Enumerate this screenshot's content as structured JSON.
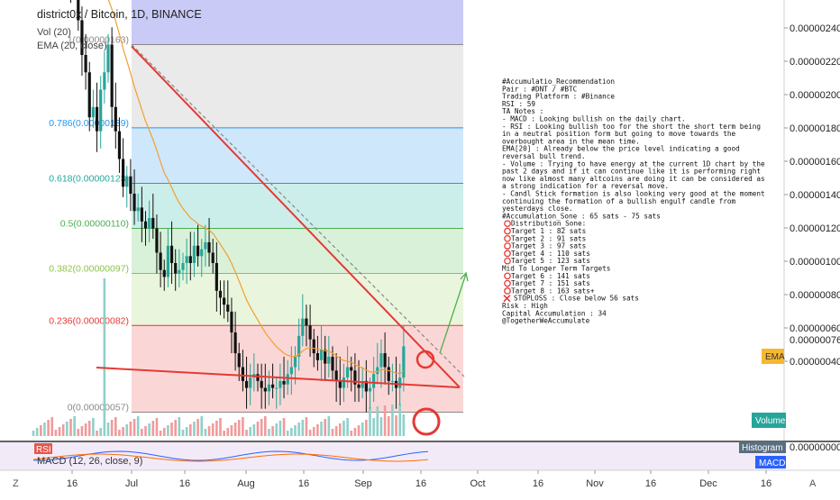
{
  "header": {
    "title": "district0x / Bitcoin, 1D, BINANCE"
  },
  "overlay_labels": {
    "vol": "Vol (20)",
    "ema": "EMA (20, close)"
  },
  "colors": {
    "up": "#26a69a",
    "down": "#111111",
    "ema": "#f0a030",
    "trend": "#e53935",
    "arrow": "#4caf50",
    "rsi_badge": "#e6564c",
    "macd_badge": "#2962ff",
    "ema_badge": "#f7b731",
    "vol_badge": "#26a69a"
  },
  "fib_levels": [
    {
      "ratio": "1.618",
      "label": "1.618(0.00000229)",
      "price": 2.29e-06,
      "color": "#3f3fc0"
    },
    {
      "ratio": "1",
      "label": "1(0.00000163)",
      "price": 1.63e-06,
      "color": "#888888"
    },
    {
      "ratio": "0.786",
      "label": "0.786(0.00000139)",
      "price": 1.39e-06,
      "color": "#2196f3"
    },
    {
      "ratio": "0.618",
      "label": "0.618(0.00000123)",
      "price": 1.23e-06,
      "color": "#26a69a"
    },
    {
      "ratio": "0.5",
      "label": "0.5(0.00000110)",
      "price": 1.1e-06,
      "color": "#4caf50"
    },
    {
      "ratio": "0.382",
      "label": "0.382(0.00000097)",
      "price": 9.7e-07,
      "color": "#8bc34a"
    },
    {
      "ratio": "0.236",
      "label": "0.236(0.00000082)",
      "price": 8.2e-07,
      "color": "#e53935"
    },
    {
      "ratio": "0",
      "label": "0(0.00000057)",
      "price": 5.7e-07,
      "color": "#888888"
    }
  ],
  "right_axis": {
    "ticks": [
      "0.00000240",
      "0.00000220",
      "0.00000200",
      "0.00000180",
      "0.00000160",
      "0.00000140",
      "0.00000120",
      "0.00000100",
      "0.00000080",
      "0.00000060",
      "0.00000040"
    ],
    "current_price": "0.00000076",
    "ema_label": "EMA",
    "volume_label": "Volume",
    "zero_label": "0.00000000",
    "histogram_label": "Histogram",
    "macd_label": "MACD"
  },
  "x_axis": {
    "ticks": [
      "16",
      "Jul",
      "16",
      "Aug",
      "16",
      "Sep",
      "16",
      "Oct",
      "16",
      "Nov",
      "16",
      "Dec",
      "16"
    ]
  },
  "indicators": {
    "rsi": "RSI",
    "macd": "MACD (12, 26, close, 9)"
  },
  "corner": {
    "left": "Z",
    "right": "A"
  },
  "notes": [
    "#Accumulatio_Recommendation",
    "Pair : #DNT / #BTC",
    "Trading Platform : #Binance",
    "RSI : 59",
    "TA Notes :",
    "- MACD : Looking bullish on the daily chart.",
    "- RSI : Looking bullish too for the short the short term being",
    "in a neutral position form but going to move towards the",
    "overbought area in the mean time.",
    "EMA[20] : Already below the price level indicating a good",
    "reversal bull trend.",
    "- Volume : Trying to have energy at the current 1D chart by the",
    "past 2 days and if it can continue like it is performing right",
    "now like almost many altcoins are doing it can be considered as",
    "a strong indication for a reversal move.",
    "- Candl Stick formation is also looking very good at the moment",
    "continuing the formation of a bullish engulf candle from",
    "yesterdays close.",
    "#Accumulation_Sone : 65 sats - 75 sats",
    "Distribution_Sone:",
    "Target 1 : 82 sats",
    "Target 2 : 91  sats",
    "Target 3 : 97 sats",
    "Target 4 : 110 sats",
    "Target 5 :  123 sats",
    "Mid To Longer Term Targets",
    "Target 6 : 141 sats",
    "Target 7 : 151 sats",
    "Target 8 : 163 sats+",
    "STOPLOSS : Close below 56 sats",
    "Risk : High",
    "Capital Accumulation : 34",
    "@TogetherWeAccumulate"
  ],
  "chart_data": {
    "type": "candlestick",
    "title": "district0x / Bitcoin, 1D, BINANCE",
    "y_unit": "BTC",
    "ylim": [
      2.8e-07,
      2.5e-06
    ],
    "x": [
      "Jun 11",
      "Jun 12",
      "Jun 13",
      "Jun 14",
      "Jun 15",
      "Jun 16",
      "Jun 17",
      "Jun 18",
      "Jun 19",
      "Jun 20",
      "Jun 21",
      "Jun 22",
      "Jun 23",
      "Jun 24",
      "Jun 25",
      "Jun 26",
      "Jun 27",
      "Jun 28",
      "Jun 29",
      "Jun 30",
      "Jul 1",
      "Jul 2",
      "Jul 3",
      "Jul 4",
      "Jul 5",
      "Jul 6",
      "Jul 7",
      "Jul 8",
      "Jul 9",
      "Jul 10",
      "Jul 11",
      "Jul 12",
      "Jul 13",
      "Jul 14",
      "Jul 15",
      "Jul 16",
      "Jul 17",
      "Jul 18",
      "Jul 19",
      "Jul 20",
      "Jul 21",
      "Jul 22",
      "Jul 23",
      "Jul 24",
      "Jul 25",
      "Jul 26",
      "Jul 27",
      "Jul 28",
      "Jul 29",
      "Jul 30",
      "Jul 31",
      "Aug 1",
      "Aug 2",
      "Aug 3",
      "Aug 4",
      "Aug 5",
      "Aug 6",
      "Aug 7",
      "Aug 8",
      "Aug 9",
      "Aug 10",
      "Aug 11",
      "Aug 12",
      "Aug 13",
      "Aug 14",
      "Aug 15",
      "Aug 16",
      "Aug 17",
      "Aug 18",
      "Aug 19",
      "Aug 20",
      "Aug 21",
      "Aug 22",
      "Aug 23",
      "Aug 24",
      "Aug 25",
      "Aug 26",
      "Aug 27",
      "Aug 28",
      "Aug 29",
      "Aug 30",
      "Aug 31",
      "Sep 1",
      "Sep 2",
      "Sep 3",
      "Sep 4",
      "Sep 5",
      "Sep 6",
      "Sep 7",
      "Sep 8",
      "Sep 9",
      "Sep 10",
      "Sep 11",
      "Sep 12",
      "Sep 13",
      "Sep 14",
      "Sep 15",
      "Sep 16",
      "Sep 17",
      "Sep 18"
    ],
    "close": [
      2.28,
      2.3,
      2.25,
      2.35,
      2.32,
      2.1,
      2.05,
      1.98,
      1.88,
      1.95,
      1.8,
      1.82,
      1.7,
      1.6,
      1.55,
      1.42,
      1.45,
      1.38,
      1.5,
      1.55,
      1.63,
      1.45,
      1.38,
      1.3,
      1.22,
      1.25,
      1.2,
      1.15,
      1.16,
      1.12,
      1.1,
      1.13,
      1.1,
      1.03,
      0.98,
      0.96,
      1.05,
      1.0,
      0.97,
      0.98,
      1.0,
      1.02,
      1.0,
      1.05,
      1.02,
      1.04,
      1.06,
      1.03,
      1.0,
      0.92,
      0.9,
      0.88,
      0.86,
      0.8,
      0.74,
      0.7,
      0.66,
      0.64,
      0.67,
      0.68,
      0.66,
      0.64,
      0.63,
      0.65,
      0.64,
      0.64,
      0.66,
      0.65,
      0.68,
      0.7,
      0.73,
      0.79,
      0.84,
      0.82,
      0.78,
      0.74,
      0.72,
      0.75,
      0.71,
      0.73,
      0.69,
      0.66,
      0.64,
      0.67,
      0.7,
      0.69,
      0.65,
      0.64,
      0.66,
      0.63,
      0.64,
      0.68,
      0.7,
      0.74,
      0.7,
      0.66,
      0.66,
      0.64,
      0.67,
      0.76
    ],
    "volume_spike_at": "Jun 30",
    "series": [
      {
        "name": "EMA (20, close)",
        "type": "line"
      }
    ],
    "trendlines": [
      {
        "from": {
          "x": "Jul 1",
          "y": 1.63e-06
        },
        "to": {
          "x": "Sep 30",
          "y": 5.3e-07
        },
        "style": "solid"
      },
      {
        "from": {
          "x": "Jul 1",
          "y": 1.63e-06
        },
        "to": {
          "x": "Sep 30",
          "y": 5.6e-07
        },
        "style": "dashed"
      },
      {
        "from": {
          "x": "Jun 16",
          "y": 5.9e-07
        },
        "to": {
          "x": "Sep 30",
          "y": 5.3e-07
        },
        "style": "solid"
      }
    ],
    "projection": {
      "from": {
        "x": "Sep 18",
        "y": 7.6e-07
      },
      "to": {
        "x": "Sep 26",
        "y": 1.08e-06
      }
    },
    "xaxis_ticks": [
      "16",
      "Jul",
      "16",
      "Aug",
      "16",
      "Sep",
      "16",
      "Oct",
      "16",
      "Nov",
      "16",
      "Dec",
      "16"
    ]
  }
}
